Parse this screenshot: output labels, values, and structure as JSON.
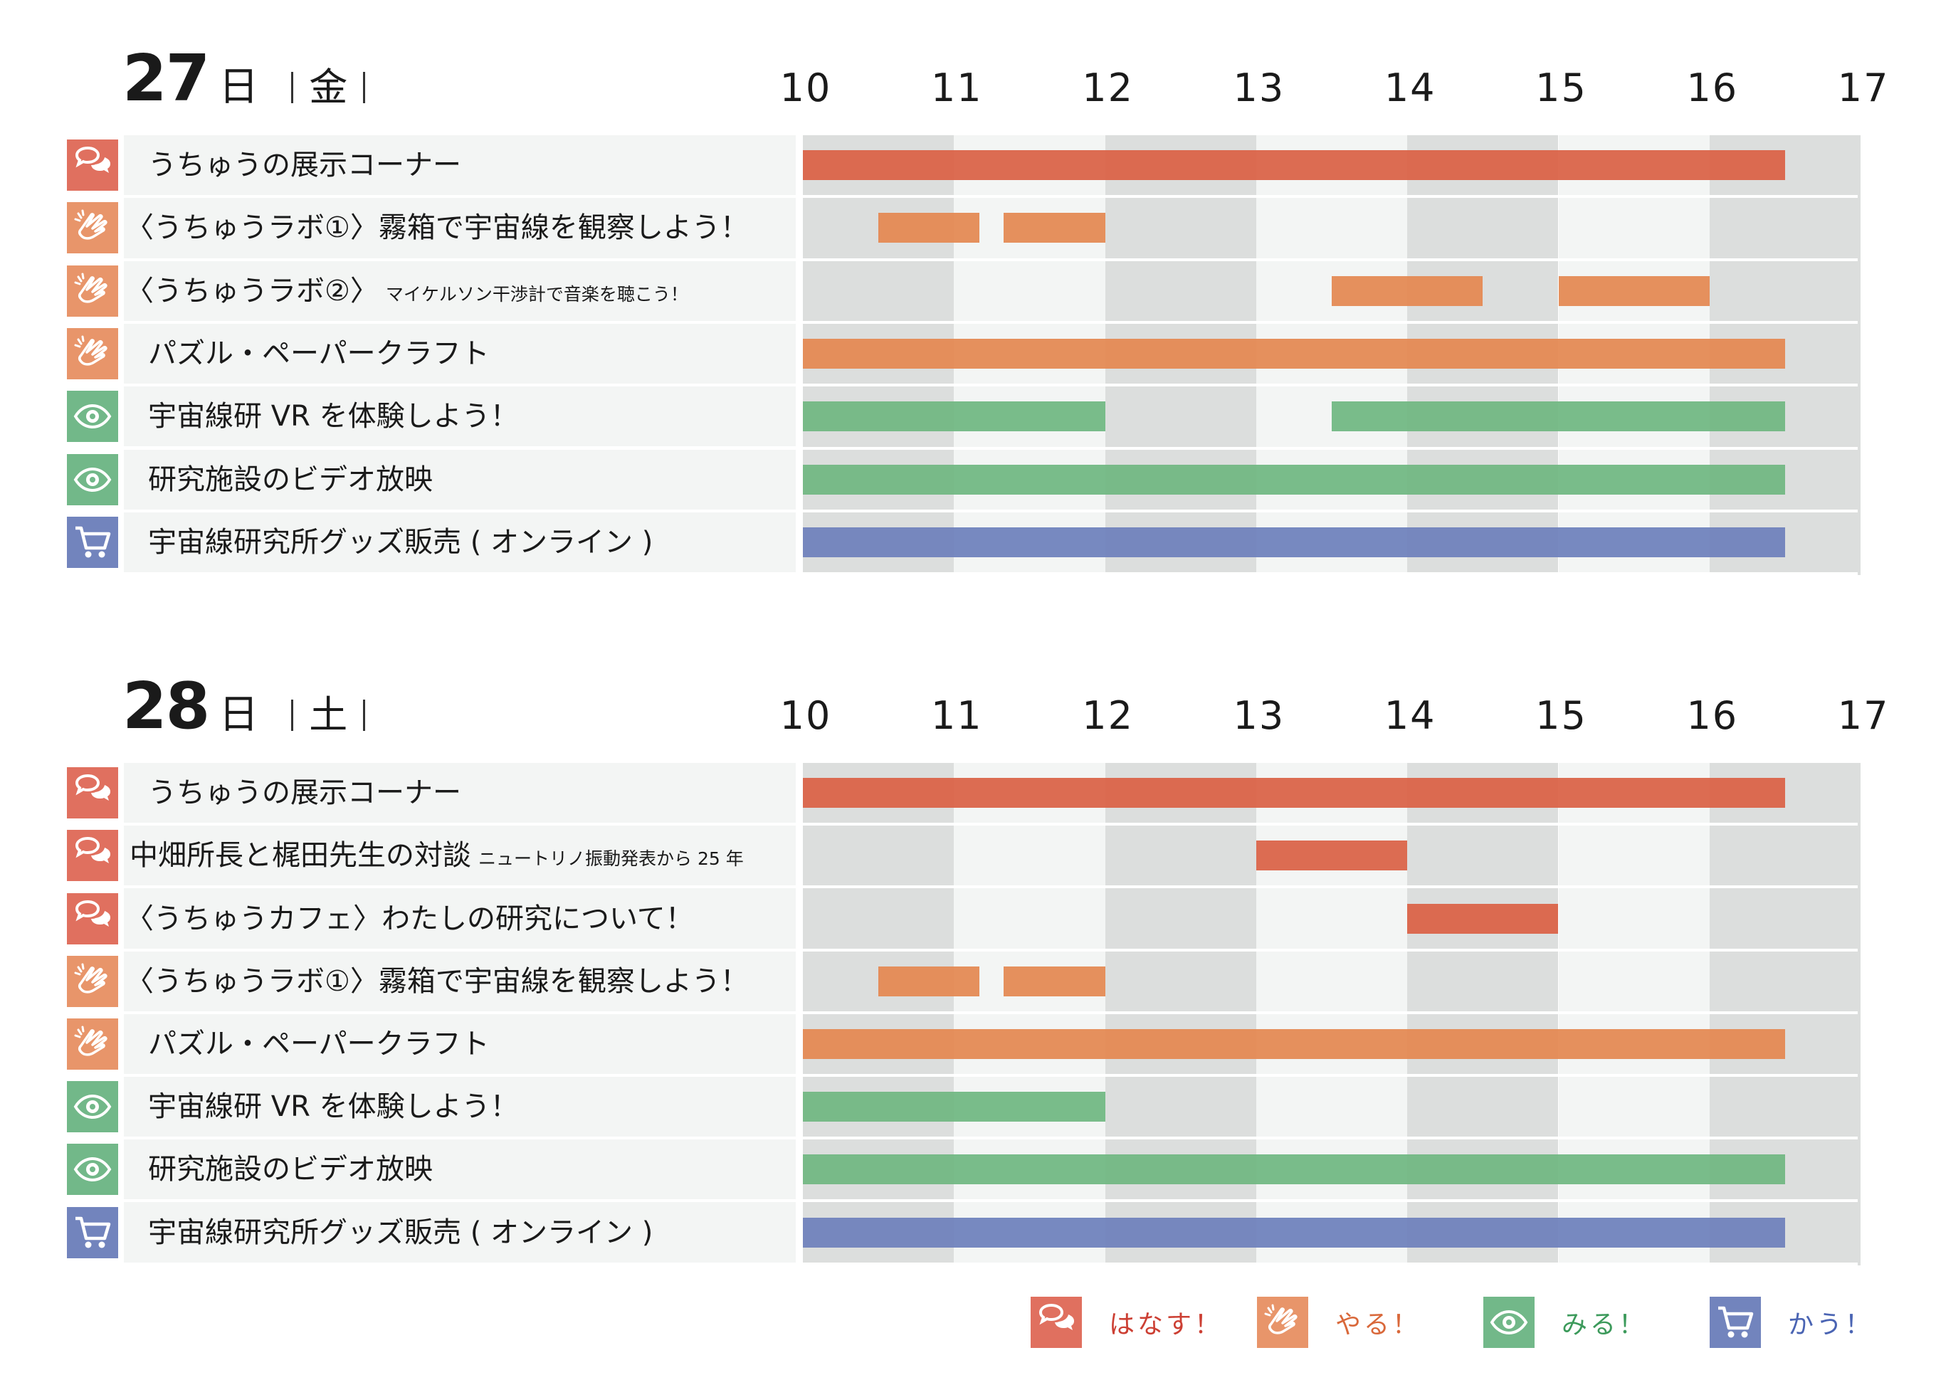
{
  "colors": {
    "talk": "#e0705f",
    "do": "#e8956a",
    "see": "#72b889",
    "buy": "#7284bd",
    "bar_talk": "#da5f43",
    "bar_do": "#e4874f",
    "bar_see": "#6fb680",
    "bar_buy": "#6c7fbb",
    "legend_text_talk": "#cc3f33",
    "legend_text_do": "#d9683a",
    "legend_text_see": "#3c9a5b",
    "legend_text_buy": "#4a64b3"
  },
  "hours": [
    "10",
    "11",
    "12",
    "13",
    "14",
    "15",
    "16",
    "17"
  ],
  "days": [
    {
      "num": "27",
      "unit": "日",
      "weekday": "金",
      "rows": [
        {
          "icon": "talk",
          "label": "うちゅうの展示コーナー",
          "sub": "",
          "sessions": [
            {
              "start": 10.0,
              "end": 16.5
            }
          ]
        },
        {
          "icon": "do",
          "label": "〈うちゅうラボ①〉霧箱で宇宙線を観察しよう！",
          "sub": "",
          "sessions": [
            {
              "start": 10.5,
              "end": 11.17
            },
            {
              "start": 11.33,
              "end": 12.0
            }
          ]
        },
        {
          "icon": "do",
          "label": "〈うちゅうラボ②〉",
          "sub": "マイケルソン干渉計で音楽を聴こう！",
          "sessions": [
            {
              "start": 13.5,
              "end": 14.5
            },
            {
              "start": 15.0,
              "end": 16.0
            }
          ]
        },
        {
          "icon": "do",
          "label": "パズル・ペーパークラフト",
          "sub": "",
          "sessions": [
            {
              "start": 10.0,
              "end": 16.5
            }
          ]
        },
        {
          "icon": "see",
          "label": "宇宙線研 VR を体験しよう！",
          "sub": "",
          "sessions": [
            {
              "start": 10.0,
              "end": 12.0
            },
            {
              "start": 13.5,
              "end": 16.5
            }
          ]
        },
        {
          "icon": "see",
          "label": "研究施設のビデオ放映",
          "sub": "",
          "sessions": [
            {
              "start": 10.0,
              "end": 16.5
            }
          ]
        },
        {
          "icon": "buy",
          "label": "宇宙線研究所グッズ販売 ( オンライン )",
          "sub": "",
          "sessions": [
            {
              "start": 10.0,
              "end": 16.5
            }
          ]
        }
      ]
    },
    {
      "num": "28",
      "unit": "日",
      "weekday": "土",
      "rows": [
        {
          "icon": "talk",
          "label": "うちゅうの展示コーナー",
          "sub": "",
          "sessions": [
            {
              "start": 10.0,
              "end": 16.5
            }
          ]
        },
        {
          "icon": "talk",
          "label": "中畑所長と梶田先生の対談",
          "sub": "ニュートリノ振動発表から 25 年",
          "sessions": [
            {
              "start": 13.0,
              "end": 14.0
            }
          ]
        },
        {
          "icon": "talk",
          "label": "〈うちゅうカフェ〉わたしの研究について！",
          "sub": "",
          "sessions": [
            {
              "start": 14.0,
              "end": 15.0
            }
          ]
        },
        {
          "icon": "do",
          "label": "〈うちゅうラボ①〉霧箱で宇宙線を観察しよう！",
          "sub": "",
          "sessions": [
            {
              "start": 10.5,
              "end": 11.17
            },
            {
              "start": 11.33,
              "end": 12.0
            }
          ]
        },
        {
          "icon": "do",
          "label": "パズル・ペーパークラフト",
          "sub": "",
          "sessions": [
            {
              "start": 10.0,
              "end": 16.5
            }
          ]
        },
        {
          "icon": "see",
          "label": "宇宙線研 VR を体験しよう！",
          "sub": "",
          "sessions": [
            {
              "start": 10.0,
              "end": 12.0
            }
          ]
        },
        {
          "icon": "see",
          "label": "研究施設のビデオ放映",
          "sub": "",
          "sessions": [
            {
              "start": 10.0,
              "end": 16.5
            }
          ]
        },
        {
          "icon": "buy",
          "label": "宇宙線研究所グッズ販売 ( オンライン )",
          "sub": "",
          "sessions": [
            {
              "start": 10.0,
              "end": 16.5
            }
          ]
        }
      ]
    }
  ],
  "legend": [
    {
      "icon": "talk",
      "label": "はなす！"
    },
    {
      "icon": "do",
      "label": "やる！"
    },
    {
      "icon": "see",
      "label": "みる！"
    },
    {
      "icon": "buy",
      "label": "かう！"
    }
  ],
  "chart_data": {
    "type": "gantt",
    "x_unit": "hour",
    "xlim": [
      10,
      17
    ],
    "grid": "alternating hour bands",
    "legend_placement": "bottom-right",
    "series": [
      {
        "day": "27 日 金",
        "tasks": [
          {
            "name": "うちゅうの展示コーナー",
            "category": "はなす！",
            "intervals": [
              [
                10.0,
                16.5
              ]
            ]
          },
          {
            "name": "〈うちゅうラボ①〉霧箱で宇宙線を観察しよう！",
            "category": "やる！",
            "intervals": [
              [
                10.5,
                11.17
              ],
              [
                11.33,
                12.0
              ]
            ]
          },
          {
            "name": "〈うちゅうラボ②〉マイケルソン干渉計で音楽を聴こう！",
            "category": "やる！",
            "intervals": [
              [
                13.5,
                14.5
              ],
              [
                15.0,
                16.0
              ]
            ]
          },
          {
            "name": "パズル・ペーパークラフト",
            "category": "やる！",
            "intervals": [
              [
                10.0,
                16.5
              ]
            ]
          },
          {
            "name": "宇宙線研 VR を体験しよう！",
            "category": "みる！",
            "intervals": [
              [
                10.0,
                12.0
              ],
              [
                13.5,
                16.5
              ]
            ]
          },
          {
            "name": "研究施設のビデオ放映",
            "category": "みる！",
            "intervals": [
              [
                10.0,
                16.5
              ]
            ]
          },
          {
            "name": "宇宙線研究所グッズ販売 ( オンライン )",
            "category": "かう！",
            "intervals": [
              [
                10.0,
                16.5
              ]
            ]
          }
        ]
      },
      {
        "day": "28 日 土",
        "tasks": [
          {
            "name": "うちゅうの展示コーナー",
            "category": "はなす！",
            "intervals": [
              [
                10.0,
                16.5
              ]
            ]
          },
          {
            "name": "中畑所長と梶田先生の対談 ニュートリノ振動発表から 25 年",
            "category": "はなす！",
            "intervals": [
              [
                13.0,
                14.0
              ]
            ]
          },
          {
            "name": "〈うちゅうカフェ〉わたしの研究について！",
            "category": "はなす！",
            "intervals": [
              [
                14.0,
                15.0
              ]
            ]
          },
          {
            "name": "〈うちゅうラボ①〉霧箱で宇宙線を観察しよう！",
            "category": "やる！",
            "intervals": [
              [
                10.5,
                11.17
              ],
              [
                11.33,
                12.0
              ]
            ]
          },
          {
            "name": "パズル・ペーパークラフト",
            "category": "やる！",
            "intervals": [
              [
                10.0,
                16.5
              ]
            ]
          },
          {
            "name": "宇宙線研 VR を体験しよう！",
            "category": "みる！",
            "intervals": [
              [
                10.0,
                12.0
              ]
            ]
          },
          {
            "name": "研究施設のビデオ放映",
            "category": "みる！",
            "intervals": [
              [
                10.0,
                16.5
              ]
            ]
          },
          {
            "name": "宇宙線研究所グッズ販売 ( オンライン )",
            "category": "かう！",
            "intervals": [
              [
                10.0,
                16.5
              ]
            ]
          }
        ]
      }
    ]
  }
}
